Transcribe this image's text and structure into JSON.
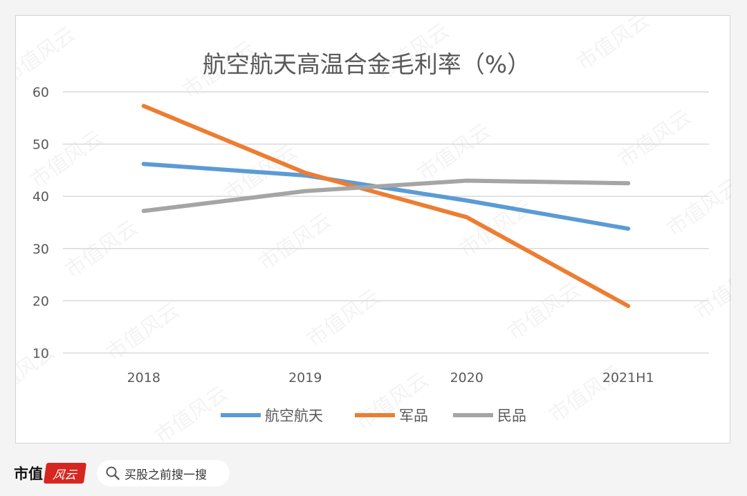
{
  "chart_data": {
    "type": "line",
    "title": "航空航天高温合金毛利率（%）",
    "categories": [
      "2018",
      "2019",
      "2020",
      "2021H1"
    ],
    "series": [
      {
        "name": "航空航天",
        "values": [
          46.2,
          44.0,
          39.2,
          33.8
        ],
        "color": "#5b9bd5"
      },
      {
        "name": "军品",
        "values": [
          57.3,
          44.5,
          36.0,
          19.0
        ],
        "color": "#ed7d31"
      },
      {
        "name": "民品",
        "values": [
          37.2,
          41.0,
          43.0,
          42.5
        ],
        "color": "#a5a5a5"
      }
    ],
    "y_ticks": [
      "60",
      "50",
      "40",
      "30",
      "20",
      "10"
    ],
    "ylim": [
      10,
      60
    ],
    "grid": true,
    "legend": "bottom"
  },
  "watermark": "市值风云",
  "footer": {
    "brand_text": "市值",
    "brand_badge": "风云",
    "search_text": "买股之前搜一搜"
  }
}
